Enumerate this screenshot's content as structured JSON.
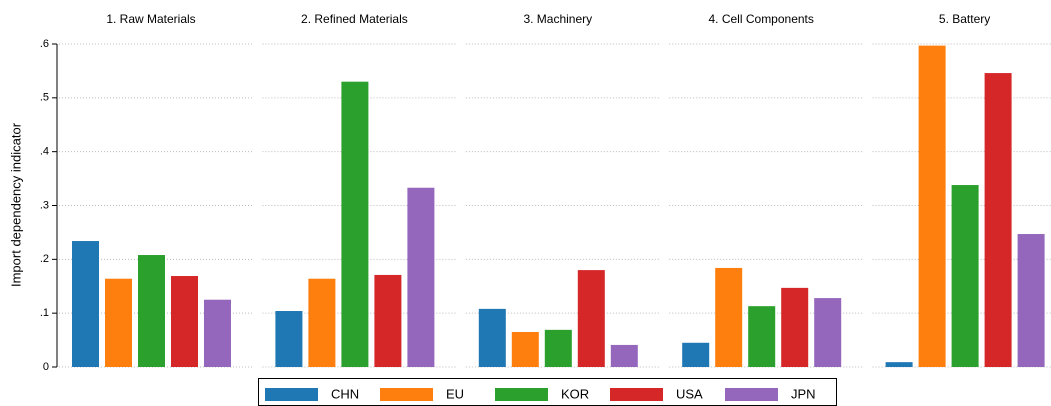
{
  "chart_data": {
    "type": "bar",
    "ylabel": "Import dependency indicator",
    "categories": [
      "1. Raw Materials",
      "2. Refined Materials",
      "3. Machinery",
      "4. Cell Components",
      "5. Battery"
    ],
    "series": [
      {
        "name": "CHN",
        "color": "#1f77b4",
        "values": [
          0.234,
          0.104,
          0.108,
          0.045,
          0.009
        ]
      },
      {
        "name": "EU",
        "color": "#ff7f0e",
        "values": [
          0.164,
          0.164,
          0.065,
          0.184,
          0.597
        ]
      },
      {
        "name": "KOR",
        "color": "#2ca02c",
        "values": [
          0.208,
          0.53,
          0.069,
          0.113,
          0.338
        ]
      },
      {
        "name": "USA",
        "color": "#d62728",
        "values": [
          0.169,
          0.171,
          0.18,
          0.147,
          0.546
        ]
      },
      {
        "name": "JPN",
        "color": "#9467bd",
        "values": [
          0.125,
          0.333,
          0.041,
          0.128,
          0.247
        ]
      }
    ],
    "ylim": [
      0,
      0.6
    ],
    "yticks": [
      0,
      {
        "value": 0.1,
        "label": ".1"
      },
      {
        "value": 0.2,
        "label": ".2"
      },
      {
        "value": 0.3,
        "label": ".3"
      },
      {
        "value": 0.4,
        "label": ".4"
      },
      {
        "value": 0.5,
        "label": ".5"
      },
      {
        "value": 0.6,
        "label": ".6"
      }
    ],
    "grid": true
  }
}
